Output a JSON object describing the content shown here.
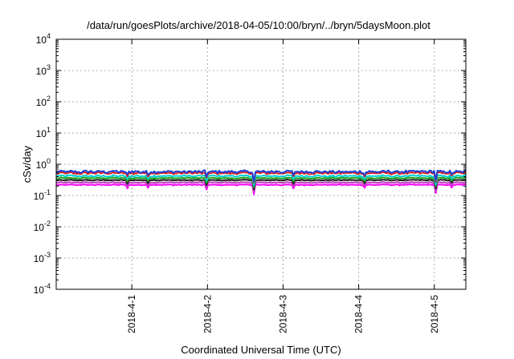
{
  "chart_data": {
    "type": "line",
    "title": "/data/run/goesPlots/archive/2018-04-05/10:00/bryn/../bryn/5daysMoon.plot",
    "xlabel": "Coordinated Universal Time (UTC)",
    "ylabel": "cSv/day",
    "y_scale": "log",
    "ylim": [
      0.0001,
      10000
    ],
    "y_ticks": [
      {
        "value": 0.0001,
        "base": "10",
        "exp": "-4"
      },
      {
        "value": 0.001,
        "base": "10",
        "exp": "-3"
      },
      {
        "value": 0.01,
        "base": "10",
        "exp": "-2"
      },
      {
        "value": 0.1,
        "base": "10",
        "exp": "-1"
      },
      {
        "value": 1,
        "base": "10",
        "exp": "0"
      },
      {
        "value": 10,
        "base": "10",
        "exp": "1"
      },
      {
        "value": 100,
        "base": "10",
        "exp": "2"
      },
      {
        "value": 1000,
        "base": "10",
        "exp": "3"
      },
      {
        "value": 10000,
        "base": "10",
        "exp": "4"
      }
    ],
    "xlim": [
      "2018-03-31 00:00",
      "2018-04-05 10:00"
    ],
    "x_ticks": [
      {
        "value": "2018-04-01 00:00",
        "label": "2018-4-1"
      },
      {
        "value": "2018-04-02 00:00",
        "label": "2018-4-2"
      },
      {
        "value": "2018-04-03 00:00",
        "label": "2018-4-3"
      },
      {
        "value": "2018-04-04 00:00",
        "label": "2018-4-4"
      },
      {
        "value": "2018-04-05 00:00",
        "label": "2018-4-5"
      }
    ],
    "grid": true,
    "series": [
      {
        "color": "#1f3fd6",
        "base_value": 0.58,
        "spread": 0.1
      },
      {
        "color": "#e02020",
        "base_value": 0.52,
        "spread": 0.08
      },
      {
        "color": "#00d0d0",
        "base_value": 0.42,
        "spread": 0.07
      },
      {
        "color": "#20a020",
        "base_value": 0.36,
        "spread": 0.05
      },
      {
        "color": "#202020",
        "base_value": 0.31,
        "spread": 0.04
      },
      {
        "color": "#c040c0",
        "base_value": 0.26,
        "spread": 0.04
      },
      {
        "color": "#ff00ff",
        "base_value": 0.22,
        "spread": 0.04
      }
    ]
  }
}
